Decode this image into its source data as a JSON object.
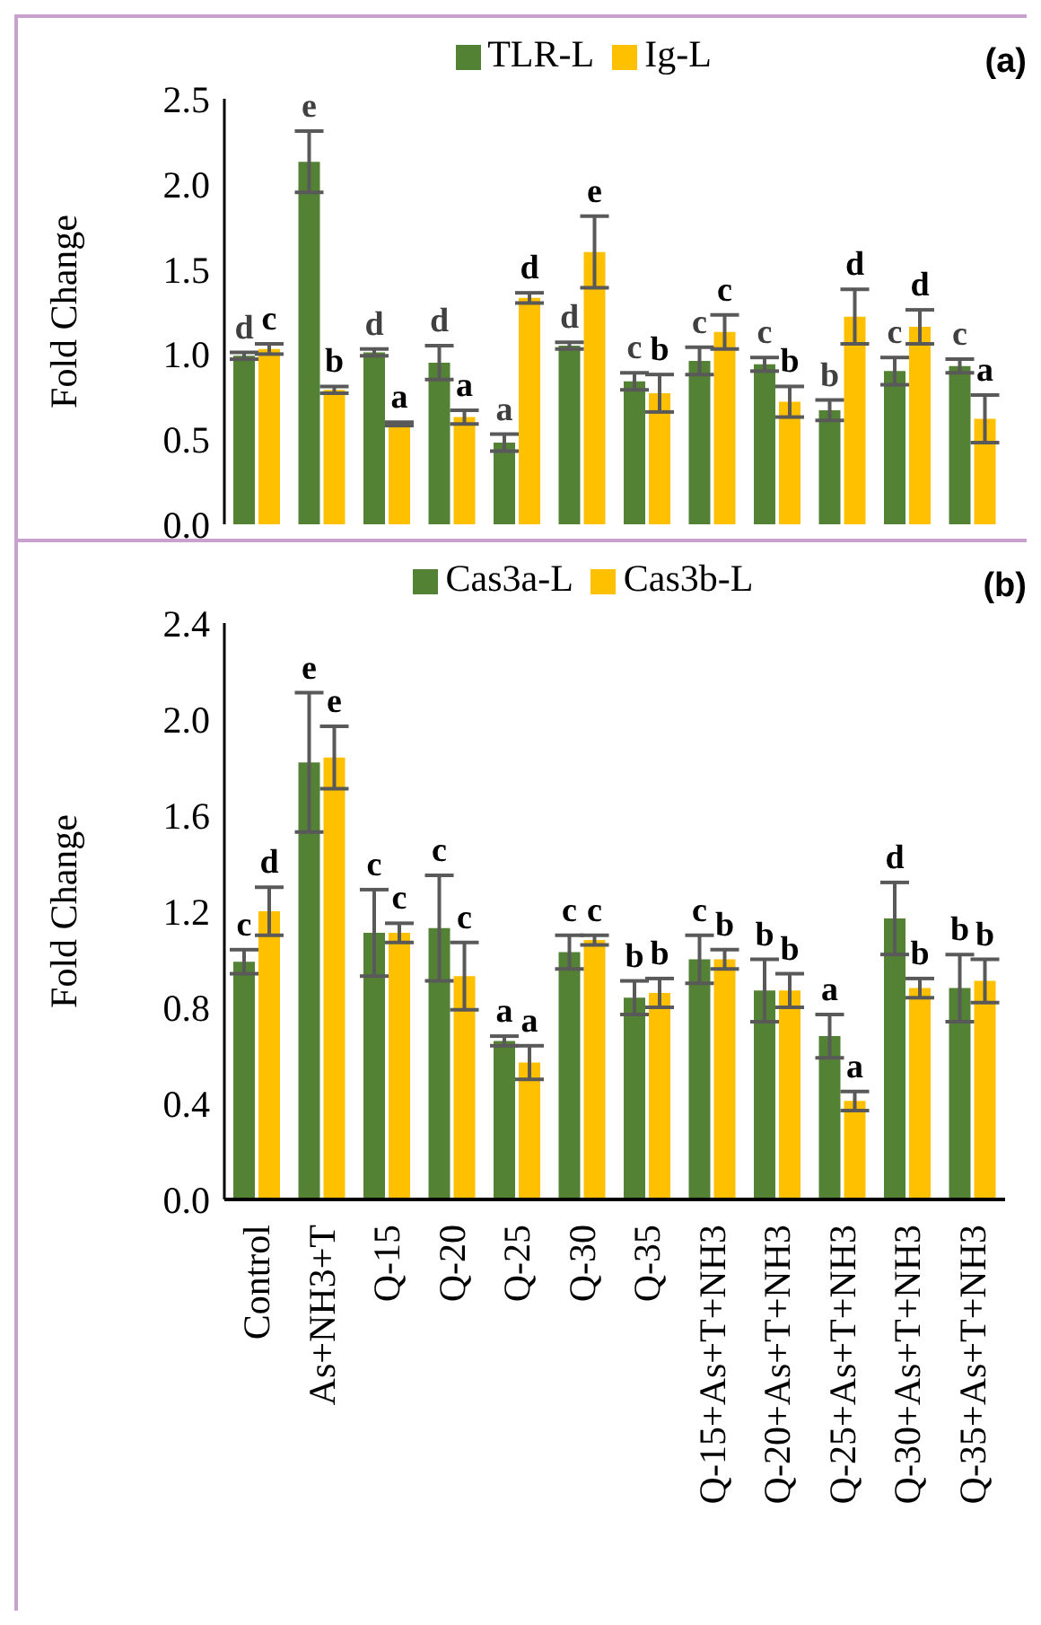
{
  "chart_data": [
    {
      "type": "bar",
      "title": "(a)",
      "ylabel": "Fold Change",
      "categories": [
        null,
        null,
        null,
        null,
        null,
        null,
        null,
        null,
        null,
        null,
        null,
        null
      ],
      "tick_labels": "y",
      "legend": "top",
      "ylim": [
        0,
        2.5
      ],
      "yticks": [
        {
          "value": 0,
          "label": "0.0"
        },
        0.5,
        {
          "value": 1,
          "label": "1.0"
        },
        1.5,
        {
          "value": 2,
          "label": "2.0"
        },
        2.5
      ],
      "series": [
        {
          "name": "TLR-L",
          "color": "#548235",
          "values": [
            0.99,
            2.13,
            1.01,
            0.95,
            0.48,
            1.05,
            0.84,
            0.96,
            0.94,
            0.67,
            0.9,
            0.93
          ],
          "errors": [
            0.02,
            0.18,
            0.02,
            0.1,
            0.05,
            0.02,
            0.05,
            0.08,
            0.04,
            0.06,
            0.08,
            0.04
          ],
          "value_labels": [
            "d",
            "e",
            "d",
            "d",
            "a",
            "d",
            "c",
            "c",
            "c",
            "b",
            "c",
            "c"
          ]
        },
        {
          "name": "Ig-L",
          "color": "#ffc000",
          "values": [
            1.03,
            0.79,
            0.59,
            0.63,
            1.33,
            1.6,
            0.77,
            1.13,
            0.72,
            1.22,
            1.16,
            0.62
          ],
          "errors": [
            0.03,
            0.02,
            0.01,
            0.04,
            0.03,
            0.21,
            0.11,
            0.1,
            0.09,
            0.16,
            0.1,
            0.14
          ],
          "value_labels": [
            "c",
            "b",
            "a",
            "a",
            "d",
            "e",
            "b",
            "c",
            "b",
            "d",
            "d",
            "a"
          ]
        }
      ]
    },
    {
      "type": "bar",
      "title": "(b)",
      "ylabel": "Fold Change",
      "categories": [
        "Control",
        "As+NH3+T",
        "Q-15",
        "Q-20",
        "Q-25",
        "Q-30",
        "Q-35",
        "Q-15+As+T+NH3",
        "Q-20+As+T+NH3",
        "Q-25+As+T+NH3",
        "Q-30+As+T+NH3",
        "Q-35+As+T+NH3"
      ],
      "legend": "top",
      "ylim": [
        0,
        2.4
      ],
      "yticks": [
        {
          "value": 0,
          "label": "0.0"
        },
        0.4,
        0.8,
        1.2,
        1.6,
        {
          "value": 2,
          "label": "2.0"
        },
        2.4
      ],
      "series": [
        {
          "name": "Cas3a-L",
          "color": "#548235",
          "values": [
            0.99,
            1.82,
            1.11,
            1.13,
            0.66,
            1.03,
            0.84,
            1.0,
            0.87,
            0.68,
            1.17,
            0.88
          ],
          "errors": [
            0.05,
            0.29,
            0.18,
            0.22,
            0.02,
            0.07,
            0.07,
            0.1,
            0.13,
            0.09,
            0.15,
            0.14
          ],
          "value_labels": [
            "c",
            "e",
            "c",
            "c",
            "a",
            "c",
            "b",
            "c",
            "b",
            "a",
            "d",
            "b"
          ]
        },
        {
          "name": "Cas3b-L",
          "color": "#ffc000",
          "values": [
            1.2,
            1.84,
            1.11,
            0.93,
            0.57,
            1.08,
            0.86,
            1.0,
            0.87,
            0.41,
            0.88,
            0.91
          ],
          "errors": [
            0.1,
            0.13,
            0.04,
            0.14,
            0.07,
            0.02,
            0.06,
            0.04,
            0.07,
            0.04,
            0.04,
            0.09
          ],
          "value_labels": [
            "d",
            "e",
            "c",
            "c",
            "a",
            "c",
            "b",
            "b",
            "b",
            "a",
            "b",
            "b"
          ]
        }
      ]
    }
  ]
}
